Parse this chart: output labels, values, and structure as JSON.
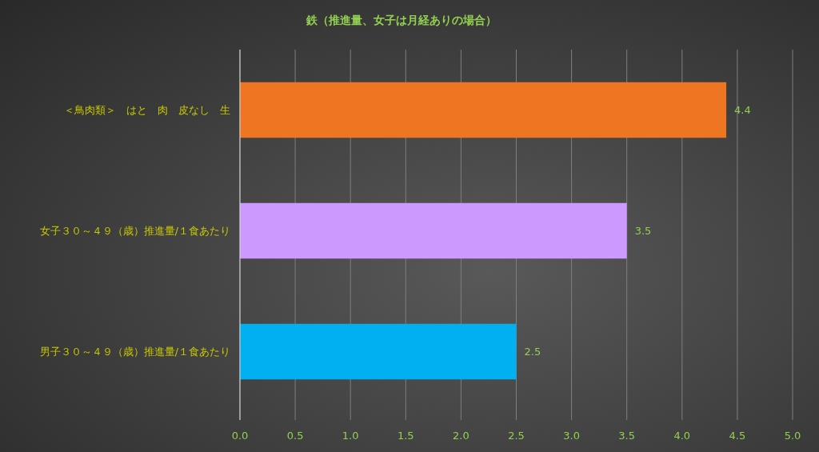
{
  "chart_data": {
    "type": "bar",
    "orientation": "horizontal",
    "title": "鉄（推進量、女子は月経ありの場合）",
    "categories": [
      "＜鳥肉類＞　はと　肉　皮なし　生",
      "女子３０～４９（歳）推進量/１食あたり",
      "男子３０～４９（歳）推進量/１食あたり"
    ],
    "values": [
      4.4,
      3.5,
      2.5
    ],
    "colors": [
      "#ee7623",
      "#cc99ff",
      "#00b0f0"
    ],
    "xlim": [
      0,
      5
    ],
    "xticks": [
      {
        "value": 0,
        "label": "0.0"
      },
      {
        "value": 0.5,
        "label": "0.5"
      },
      {
        "value": 1,
        "label": "1.0"
      },
      {
        "value": 1.5,
        "label": "1.5"
      },
      {
        "value": 2,
        "label": "2.0"
      },
      {
        "value": 2.5,
        "label": "2.5"
      },
      {
        "value": 3,
        "label": "3.0"
      },
      {
        "value": 3.5,
        "label": "3.5"
      },
      {
        "value": 4,
        "label": "4.0"
      },
      {
        "value": 4.5,
        "label": "4.5"
      },
      {
        "value": 5,
        "label": "5.0"
      }
    ],
    "grid": "x",
    "data_labels": true
  }
}
